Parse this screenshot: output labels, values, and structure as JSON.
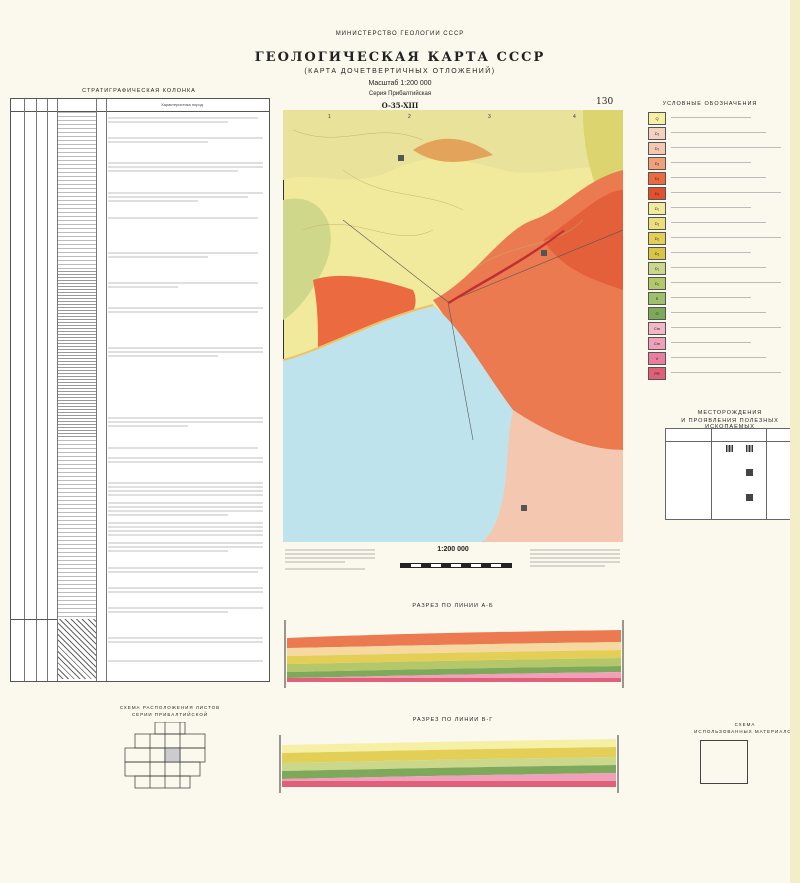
{
  "header": {
    "ministry": "МИНИСТЕРСТВО ГЕОЛОГИИ СССР",
    "title": "ГЕОЛОГИЧЕСКАЯ КАРТА СССР",
    "subtitle": "(КАРТА ДОЧЕТВЕРТИЧНЫХ ОТЛОЖЕНИЙ)",
    "scale": "Масштаб 1:200 000",
    "series": "Серия Прибалтийская",
    "sheet": "O-35-XIII",
    "sheet_number": "130"
  },
  "map": {
    "grid_top": [
      "1",
      "2",
      "3",
      "4"
    ],
    "scale_label": "1:200 000",
    "colors": {
      "lake": "#bfe3ec",
      "orange": "#ec6a3f",
      "salmon": "#f0a07a",
      "pale": "#f6d9c0",
      "yellow": "#f1ea9c",
      "green": "#c9d98a"
    }
  },
  "strat_column": {
    "title": "СТРАТИГРАФИЧЕСКАЯ КОЛОНКА",
    "column_header": "Характеристика пород"
  },
  "legend": {
    "title": "УСЛОВНЫЕ ОБОЗНАЧЕНИЯ",
    "items": [
      {
        "code": "Q",
        "color": "#f6f0a6"
      },
      {
        "code": "D₃",
        "color": "#f4d2c0"
      },
      {
        "code": "D₃",
        "color": "#f3c7b0"
      },
      {
        "code": "D₃",
        "color": "#f0a07a"
      },
      {
        "code": "D₃",
        "color": "#ec6a3f"
      },
      {
        "code": "D₃",
        "color": "#e4502e"
      },
      {
        "code": "D₂",
        "color": "#f1ea9c"
      },
      {
        "code": "D₂",
        "color": "#ecdf7a"
      },
      {
        "code": "D₂",
        "color": "#e3cf55"
      },
      {
        "code": "D₂",
        "color": "#d8c548"
      },
      {
        "code": "D₁",
        "color": "#cbd88c"
      },
      {
        "code": "D₁",
        "color": "#b4c86a"
      },
      {
        "code": "S",
        "color": "#9fbf6a"
      },
      {
        "code": "O",
        "color": "#7ea85a"
      },
      {
        "code": "Cm",
        "color": "#f2b8c8"
      },
      {
        "code": "Cm",
        "color": "#f0a0b8"
      },
      {
        "code": "V",
        "color": "#e87fa0"
      },
      {
        "code": "PR",
        "color": "#e0607a"
      }
    ]
  },
  "minerals": {
    "title_line1": "МЕСТОРОЖДЕНИЯ",
    "title_line2": "И ПРОЯВЛЕНИЯ ПОЛЕЗНЫХ ИСКОПАЕМЫХ"
  },
  "sections": {
    "ab_title": "РАЗРЕЗ ПО ЛИНИИ А-Б",
    "vg_title": "РАЗРЕЗ ПО ЛИНИИ В-Г"
  },
  "sheet_scheme": {
    "title_line1": "СХЕМА РАСПОЛОЖЕНИЯ ЛИСТОВ",
    "title_line2": "СЕРИИ ПРИБАЛТИЙСКОЙ"
  },
  "materials_scheme": {
    "title_line1": "СХЕМА",
    "title_line2": "ИСПОЛЬЗОВАННЫХ МАТЕРИАЛОВ"
  }
}
